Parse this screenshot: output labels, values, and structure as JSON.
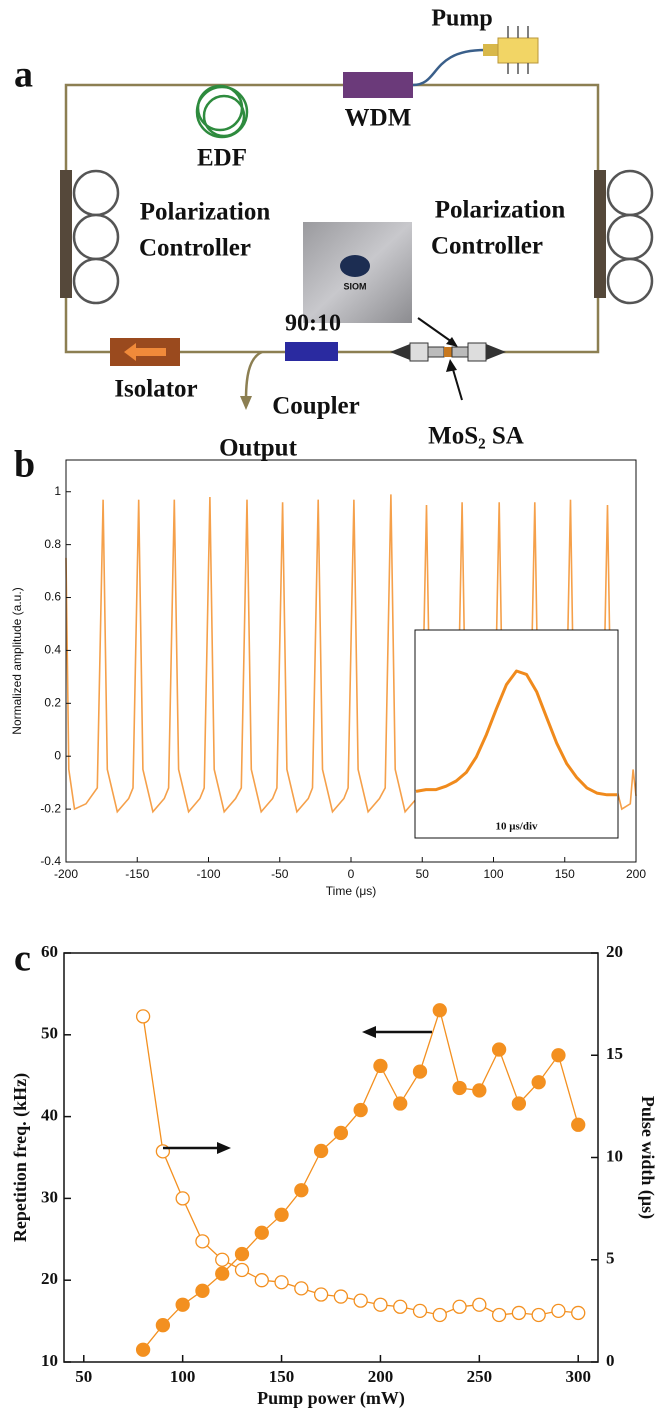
{
  "diagram": {
    "label": "a",
    "pump": "Pump",
    "wdm": "WDM",
    "edf": "EDF",
    "pc_left": [
      "Polarization",
      "Controller"
    ],
    "pc_right": [
      "Polarization",
      "Controller"
    ],
    "photo_text": "SIOM",
    "ratio": "90:10",
    "coupler": "Coupler",
    "isolator": "Isolator",
    "output": "Output",
    "sa": "MoS₂ SA"
  },
  "chart_data": [
    {
      "type": "line",
      "label": "b",
      "xlabel": "Time (μs)",
      "ylabel": "Normalized amplitude (a.u.)",
      "color": "#f5a04a",
      "xlim": [
        -200,
        200
      ],
      "xticks": [
        -200,
        -150,
        -100,
        -50,
        0,
        50,
        100,
        150,
        200
      ],
      "ylim": [
        -0.4,
        1.12
      ],
      "yticks": [
        -0.4,
        -0.2,
        0,
        0.2,
        0.4,
        0.6,
        0.8,
        1
      ],
      "x": [
        -200,
        -198,
        -194,
        -186,
        -178,
        -174,
        -171,
        -164,
        -156,
        -153,
        -149,
        -146,
        -139,
        -131,
        -128,
        -124,
        -121,
        -114,
        -106,
        -103,
        -99,
        -96,
        -89,
        -81,
        -77,
        -73,
        -70,
        -63,
        -55,
        -52,
        -48,
        -45,
        -38,
        -30,
        -27,
        -23,
        -20,
        -13,
        -5,
        -2,
        2,
        5,
        12,
        20,
        24,
        28,
        31,
        38,
        46,
        49,
        53,
        56,
        63,
        71,
        74,
        78,
        81,
        88,
        96,
        100,
        104,
        107,
        114,
        122,
        125,
        129,
        132,
        139,
        147,
        150,
        154,
        157,
        164,
        172,
        176,
        180,
        183,
        190,
        196,
        198,
        200
      ],
      "values": [
        0.75,
        -0.05,
        -0.2,
        -0.18,
        -0.12,
        0.97,
        -0.05,
        -0.21,
        -0.16,
        -0.12,
        0.97,
        -0.05,
        -0.21,
        -0.16,
        -0.12,
        0.97,
        -0.05,
        -0.21,
        -0.16,
        -0.12,
        0.98,
        -0.05,
        -0.21,
        -0.16,
        -0.12,
        0.97,
        -0.05,
        -0.21,
        -0.16,
        -0.12,
        0.96,
        -0.05,
        -0.21,
        -0.16,
        -0.12,
        0.97,
        -0.05,
        -0.21,
        -0.16,
        -0.12,
        0.97,
        -0.05,
        -0.21,
        -0.16,
        -0.12,
        0.99,
        -0.05,
        -0.21,
        -0.16,
        -0.12,
        0.95,
        -0.05,
        -0.21,
        -0.16,
        -0.12,
        0.96,
        -0.05,
        -0.21,
        -0.16,
        -0.12,
        0.96,
        -0.05,
        -0.21,
        -0.16,
        -0.12,
        0.96,
        -0.05,
        -0.21,
        -0.16,
        -0.12,
        0.97,
        -0.05,
        -0.21,
        -0.16,
        -0.12,
        0.95,
        -0.05,
        -0.2,
        -0.18,
        -0.05,
        -0.15
      ]
    },
    {
      "type": "inset",
      "note": "10 μs/div",
      "color": "#f08a1c",
      "xlim": [
        0,
        10
      ],
      "ylim": [
        0,
        1
      ],
      "x": [
        0,
        0.5,
        1,
        1.5,
        2,
        2.5,
        3,
        3.5,
        4,
        4.5,
        5,
        5.5,
        6,
        6.5,
        7,
        7.5,
        8,
        8.5,
        9,
        9.5,
        10
      ],
      "values": [
        0.12,
        0.13,
        0.13,
        0.15,
        0.18,
        0.23,
        0.32,
        0.45,
        0.6,
        0.74,
        0.82,
        0.8,
        0.7,
        0.55,
        0.4,
        0.28,
        0.2,
        0.14,
        0.11,
        0.1,
        0.1
      ]
    },
    {
      "type": "dual-scatter",
      "label": "c",
      "xlabel": "Pump power (mW)",
      "ylabel": "Repetition freq. (kHz)",
      "y2label": "Pulse width (μs)",
      "xlim": [
        40,
        310
      ],
      "xticks": [
        50,
        100,
        150,
        200,
        250,
        300
      ],
      "ylim": [
        10,
        60
      ],
      "yticks": [
        10,
        20,
        30,
        40,
        50,
        60
      ],
      "y2lim": [
        0,
        20
      ],
      "y2ticks": [
        0,
        5,
        10,
        15,
        20
      ],
      "x": [
        80,
        90,
        100,
        110,
        120,
        130,
        140,
        150,
        160,
        170,
        180,
        190,
        200,
        210,
        220,
        230,
        240,
        250,
        260,
        270,
        280,
        290,
        300
      ],
      "series": [
        {
          "color": "#f39020",
          "marker": "filled",
          "values": [
            11.5,
            14.5,
            17,
            18.7,
            20.8,
            23.2,
            25.8,
            28,
            31,
            35.8,
            38,
            40.8,
            46.2,
            41.6,
            45.5,
            53,
            43.5,
            43.2,
            48.2,
            41.6,
            44.2,
            47.5,
            39
          ]
        },
        {
          "color": "#f39020",
          "marker": "open",
          "axis": "y2",
          "values": [
            16.9,
            10.3,
            8,
            5.9,
            5,
            4.5,
            4,
            3.9,
            3.6,
            3.3,
            3.2,
            3,
            2.8,
            2.7,
            2.5,
            2.3,
            2.7,
            2.8,
            2.3,
            2.4,
            2.3,
            2.5,
            2.4
          ]
        }
      ]
    }
  ]
}
